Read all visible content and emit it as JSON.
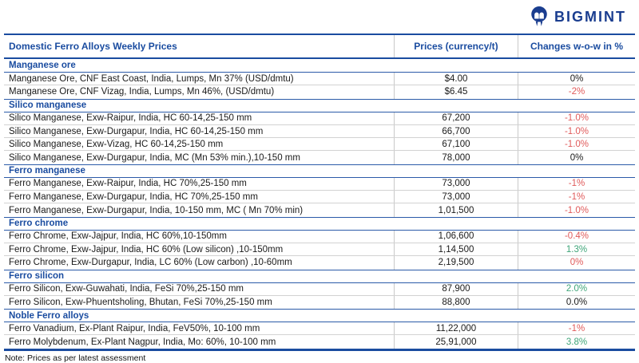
{
  "logo": {
    "text": "BIGMINT",
    "icon": "bigmint-mark-icon"
  },
  "colors": {
    "accent_blue": "#1A4CA0",
    "logo_navy": "#1A3D8F",
    "negative_red": "#E05A5A",
    "positive_green": "#3FA579",
    "text_primary": "#1a1a1a",
    "row_border_gray": "#D2D2D2"
  },
  "table": {
    "header": {
      "col1": "Domestic Ferro Alloys Weekly Prices",
      "col2": "Prices (currency/t)",
      "col3": "Changes w-o-w in %"
    },
    "sections": [
      {
        "name": "Manganese ore",
        "rows": [
          {
            "desc": "Manganese Ore, CNF East Coast, India, Lumps, Mn 37% (USD/dmtu)",
            "price": "$4.00",
            "change": "0%",
            "change_color": "black"
          },
          {
            "desc": "Manganese Ore, CNF Vizag, India, Lumps, Mn 46%, (USD/dmtu)",
            "price": "$6.45",
            "change": "-2%",
            "change_color": "red"
          }
        ]
      },
      {
        "name": "Silico manganese",
        "rows": [
          {
            "desc": "Silico Manganese, Exw-Raipur, India, HC 60-14,25-150 mm",
            "price": "67,200",
            "change": "-1.0%",
            "change_color": "red"
          },
          {
            "desc": "Silico Manganese, Exw-Durgapur, India, HC 60-14,25-150 mm",
            "price": "66,700",
            "change": "-1.0%",
            "change_color": "red"
          },
          {
            "desc": "Silico Manganese, Exw-Vizag, HC 60-14,25-150 mm",
            "price": "67,100",
            "change": "-1.0%",
            "change_color": "red"
          },
          {
            "desc": "Silico Manganese, Exw-Durgapur, India, MC (Mn 53% min.),10-150 mm",
            "price": "78,000",
            "change": "0%",
            "change_color": "black"
          }
        ]
      },
      {
        "name": "Ferro manganese",
        "rows": [
          {
            "desc": "Ferro Manganese, Exw-Raipur, India, HC 70%,25-150 mm",
            "price": "73,000",
            "change": "-1%",
            "change_color": "red"
          },
          {
            "desc": "Ferro Manganese, Exw-Durgapur, India, HC 70%,25-150 mm",
            "price": "73,000",
            "change": "-1%",
            "change_color": "red"
          },
          {
            "desc": "Ferro Manganese, Exw-Durgapur, India, 10-150 mm, MC ( Mn 70% min)",
            "price": "1,01,500",
            "change": "-1.0%",
            "change_color": "red"
          }
        ]
      },
      {
        "name": "Ferro chrome",
        "rows": [
          {
            "desc": "Ferro Chrome, Exw-Jajpur, India, HC 60%,10-150mm",
            "price": "1,06,600",
            "change": "-0.4%",
            "change_color": "red"
          },
          {
            "desc": "Ferro Chrome, Exw-Jajpur, India, HC 60% (Low silicon) ,10-150mm",
            "price": "1,14,500",
            "change": "1.3%",
            "change_color": "green"
          },
          {
            "desc": "Ferro Chrome, Exw-Durgapur, India, LC 60% (Low carbon) ,10-60mm",
            "price": "2,19,500",
            "change": "0%",
            "change_color": "red"
          }
        ]
      },
      {
        "name": "Ferro silicon",
        "rows": [
          {
            "desc": "Ferro Silicon, Exw-Guwahati, India, FeSi 70%,25-150 mm",
            "price": "87,900",
            "change": "2.0%",
            "change_color": "green"
          },
          {
            "desc": "Ferro Silicon, Exw-Phuentsholing, Bhutan, FeSi 70%,25-150 mm",
            "price": "88,800",
            "change": "0.0%",
            "change_color": "black"
          }
        ]
      },
      {
        "name": "Noble Ferro alloys",
        "rows": [
          {
            "desc": "Ferro Vanadium, Ex-Plant Raipur, India, FeV50%, 10-100 mm",
            "price": "11,22,000",
            "change": "-1%",
            "change_color": "red"
          },
          {
            "desc": "Ferro Molybdenum, Ex-Plant Nagpur, India, Mo: 60%, 10-100 mm",
            "price": "25,91,000",
            "change": "3.8%",
            "change_color": "green"
          }
        ]
      }
    ]
  },
  "note": "Note: Prices as per latest assessment"
}
